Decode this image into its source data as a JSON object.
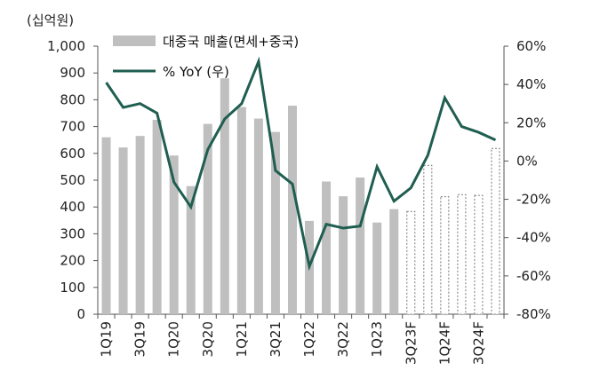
{
  "chart_data": {
    "type": "bar",
    "unit_label": "(십억원)",
    "categories": [
      "1Q19",
      "2Q19",
      "3Q19",
      "4Q19",
      "1Q20",
      "2Q20",
      "3Q20",
      "4Q20",
      "1Q21",
      "2Q21",
      "3Q21",
      "4Q21",
      "1Q22",
      "2Q22",
      "3Q22",
      "4Q22",
      "1Q23",
      "2Q23",
      "3Q23F",
      "4Q23F",
      "1Q24F",
      "2Q24F",
      "3Q24F",
      "4Q24F"
    ],
    "x_tick_labels": [
      "1Q19",
      "3Q19",
      "1Q20",
      "3Q20",
      "1Q21",
      "3Q21",
      "1Q22",
      "3Q22",
      "1Q23",
      "3Q23F",
      "1Q24F",
      "3Q24F"
    ],
    "y_left": {
      "ylim": [
        0,
        1000
      ],
      "ticks": [
        0,
        100,
        200,
        300,
        400,
        500,
        600,
        700,
        800,
        900,
        1000
      ],
      "tick_labels": [
        "0",
        "100",
        "200",
        "300",
        "400",
        "500",
        "600",
        "700",
        "800",
        "900",
        "1,000"
      ]
    },
    "y_right": {
      "ylim": [
        -80,
        60
      ],
      "ticks": [
        -80,
        -60,
        -40,
        -20,
        0,
        20,
        40,
        60
      ],
      "tick_labels": [
        "-80%",
        "-60%",
        "-40%",
        "-20%",
        "0%",
        "20%",
        "40%",
        "60%"
      ]
    },
    "series": [
      {
        "name": "대중국 매출(면세+중국)",
        "type": "bar",
        "axis": "left",
        "color": "#bfbfbf",
        "values": [
          660,
          622,
          665,
          725,
          592,
          478,
          710,
          880,
          773,
          730,
          680,
          778,
          348,
          495,
          440,
          510,
          342,
          392,
          385,
          557,
          440,
          448,
          445,
          620
        ],
        "forecast_from_index": 18
      },
      {
        "name": "% YoY (우)",
        "type": "line",
        "axis": "right",
        "color": "#1f5e50",
        "values": [
          41,
          28,
          30,
          25,
          -11,
          -24,
          6,
          22,
          30,
          52,
          -5,
          -12,
          -55,
          -33,
          -35,
          -34,
          -3,
          -21,
          -14,
          3,
          33,
          18,
          15,
          11
        ]
      }
    ],
    "grid": false,
    "legend": "top-left"
  }
}
